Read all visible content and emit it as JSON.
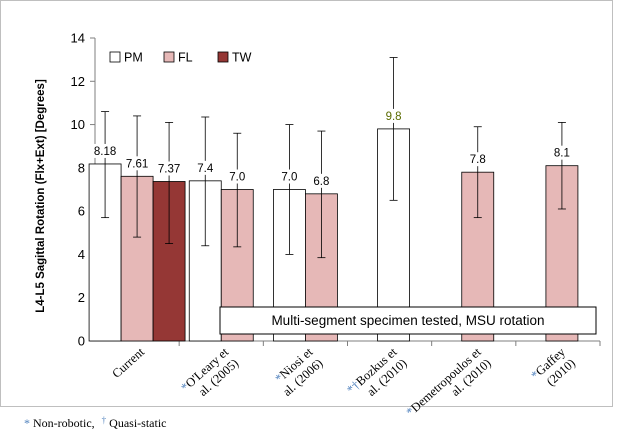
{
  "chart_data": {
    "type": "bar",
    "title": "",
    "ylabel": "L4-L5 Sagittal Rotation (Flx+Ext) [Degrees]",
    "xlabel": "",
    "ylim": [
      0,
      14
    ],
    "yticks": [
      "0",
      "2",
      "4",
      "6",
      "8",
      "10",
      "12",
      "14"
    ],
    "grid": false,
    "legend_position": "top-left",
    "colors": {
      "PM": "#ffffff",
      "FL": "#e6b8b7",
      "TW": "#953735"
    },
    "groups": [
      {
        "label": "Current",
        "markers": "",
        "bars": [
          {
            "series": "PM",
            "value": 8.18,
            "err_low": 5.7,
            "err_high": 10.6,
            "label": "8.18"
          },
          {
            "series": "FL",
            "value": 7.61,
            "err_low": 4.8,
            "err_high": 10.4,
            "label": "7.61"
          },
          {
            "series": "TW",
            "value": 7.37,
            "err_low": 4.5,
            "err_high": 10.1,
            "label": "7.37"
          }
        ]
      },
      {
        "label": "O'Leary et al. (2005)",
        "markers": "*",
        "bars": [
          {
            "series": "PM",
            "value": 7.4,
            "err_low": 4.4,
            "err_high": 10.35,
            "label": "7.4"
          },
          {
            "series": "FL",
            "value": 7.0,
            "err_low": 4.35,
            "err_high": 9.6,
            "label": "7.0"
          }
        ]
      },
      {
        "label": "Niosi et al. (2006)",
        "markers": "*",
        "bars": [
          {
            "series": "PM",
            "value": 7.0,
            "err_low": 4.0,
            "err_high": 10.0,
            "label": "7.0"
          },
          {
            "series": "FL",
            "value": 6.8,
            "err_low": 3.85,
            "err_high": 9.7,
            "label": "6.8"
          }
        ]
      },
      {
        "label": "Bozkus et al. (2010)",
        "markers": "*†",
        "bars": [
          {
            "series": "PM",
            "value": 9.8,
            "err_low": 6.5,
            "err_high": 13.1,
            "label": "9.8"
          }
        ]
      },
      {
        "label": "Demetropoulos et al. (2010)",
        "markers": "*",
        "bars": [
          {
            "series": "FL",
            "value": 7.8,
            "err_low": 5.7,
            "err_high": 9.9,
            "label": "7.8"
          }
        ]
      },
      {
        "label": "Gaffey (2010)",
        "markers": "*",
        "bars": [
          {
            "series": "FL",
            "value": 8.1,
            "err_low": 6.1,
            "err_high": 10.1,
            "label": "8.1"
          }
        ]
      }
    ],
    "legend": [
      "PM",
      "FL",
      "TW"
    ],
    "annotation": "Multi-segment specimen tested, MSU rotation"
  },
  "figure": {
    "footnote": {
      "star": "*",
      "star_text": "Non-robotic,",
      "dagger": "†",
      "dagger_text": "Quasi-static"
    }
  }
}
